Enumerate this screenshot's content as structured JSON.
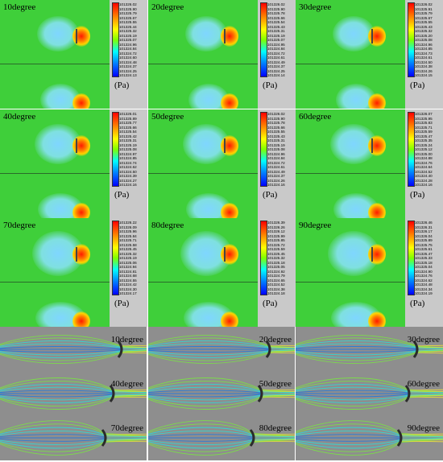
{
  "unit_label": "(Pa)",
  "pressure_panels": [
    {
      "angle": "10degree",
      "ticks": [
        "101326.02",
        "101325.90",
        "101325.79",
        "101325.67",
        "101325.55",
        "101325.44",
        "101325.32",
        "101325.19",
        "101325.07",
        "101324.96",
        "101324.84",
        "101324.72",
        "101324.60",
        "101324.48",
        "101324.37",
        "101324.25",
        "101324.13"
      ]
    },
    {
      "angle": "20degree",
      "ticks": [
        "101326.02",
        "101325.90",
        "101325.78",
        "101325.66",
        "101325.54",
        "101325.43",
        "101325.31",
        "101325.19",
        "101325.07",
        "101324.95",
        "101324.84",
        "101324.72",
        "101324.61",
        "101324.49",
        "101324.37",
        "101324.25",
        "101324.14"
      ]
    },
    {
      "angle": "30degree",
      "ticks": [
        "101326.02",
        "101325.91",
        "101325.79",
        "101325.67",
        "101325.55",
        "101325.43",
        "101325.32",
        "101325.20",
        "101325.08",
        "101324.96",
        "101324.85",
        "101324.73",
        "101324.61",
        "101324.50",
        "101324.38",
        "101324.26",
        "101324.15"
      ]
    },
    {
      "angle": "40degree",
      "ticks": [
        "101326.01",
        "101325.89",
        "101325.77",
        "101325.66",
        "101325.54",
        "101325.42",
        "101325.31",
        "101325.19",
        "101325.08",
        "101324.97",
        "101324.85",
        "101324.74",
        "101324.62",
        "101324.50",
        "101324.39",
        "101324.27",
        "101324.16"
      ]
    },
    {
      "angle": "50degree",
      "ticks": [
        "101326.02",
        "101325.90",
        "101325.78",
        "101325.66",
        "101325.55",
        "101325.43",
        "101325.31",
        "101325.19",
        "101325.08",
        "101324.96",
        "101324.84",
        "101324.72",
        "101324.61",
        "101324.49",
        "101324.37",
        "101324.26",
        "101324.16"
      ]
    },
    {
      "angle": "60degree",
      "ticks": [
        "101326.07",
        "101325.95",
        "101325.83",
        "101325.71",
        "101325.59",
        "101325.47",
        "101325.35",
        "101325.24",
        "101325.12",
        "101325.00",
        "101324.88",
        "101324.76",
        "101324.64",
        "101324.52",
        "101324.40",
        "101324.28",
        "101324.16"
      ]
    },
    {
      "angle": "70degree",
      "ticks": [
        "101326.22",
        "101326.09",
        "101325.96",
        "101325.84",
        "101325.71",
        "101325.58",
        "101325.45",
        "101325.32",
        "101325.19",
        "101325.06",
        "101324.94",
        "101324.81",
        "101324.68",
        "101324.55",
        "101324.42",
        "101324.30",
        "101324.17"
      ]
    },
    {
      "angle": "80degree",
      "ticks": [
        "101326.39",
        "101326.26",
        "101326.12",
        "101325.99",
        "101325.85",
        "101325.72",
        "101325.59",
        "101325.45",
        "101325.32",
        "101325.18",
        "101325.05",
        "101324.92",
        "101324.79",
        "101324.65",
        "101324.52",
        "101324.38",
        "101324.18"
      ]
    },
    {
      "angle": "90degree",
      "ticks": [
        "101326.46",
        "101326.31",
        "101326.17",
        "101326.04",
        "101325.89",
        "101325.75",
        "101325.61",
        "101325.47",
        "101325.33",
        "101325.18",
        "101325.04",
        "101324.90",
        "101324.76",
        "101324.62",
        "101324.48",
        "101324.34",
        "101324.19"
      ]
    }
  ],
  "streamline_panels": [
    {
      "angle": "10degree"
    },
    {
      "angle": "20degree"
    },
    {
      "angle": "30degree"
    },
    {
      "angle": "40degree"
    },
    {
      "angle": "50degree"
    },
    {
      "angle": "60degree"
    },
    {
      "angle": "70degree"
    },
    {
      "angle": "80degree"
    },
    {
      "angle": "90degree"
    }
  ],
  "colors": {
    "field": "#3fcf3a",
    "low_pressure": "#7fd6ff",
    "high_pressure": "#ff1a00",
    "stream_background": "#8e8e8e"
  }
}
